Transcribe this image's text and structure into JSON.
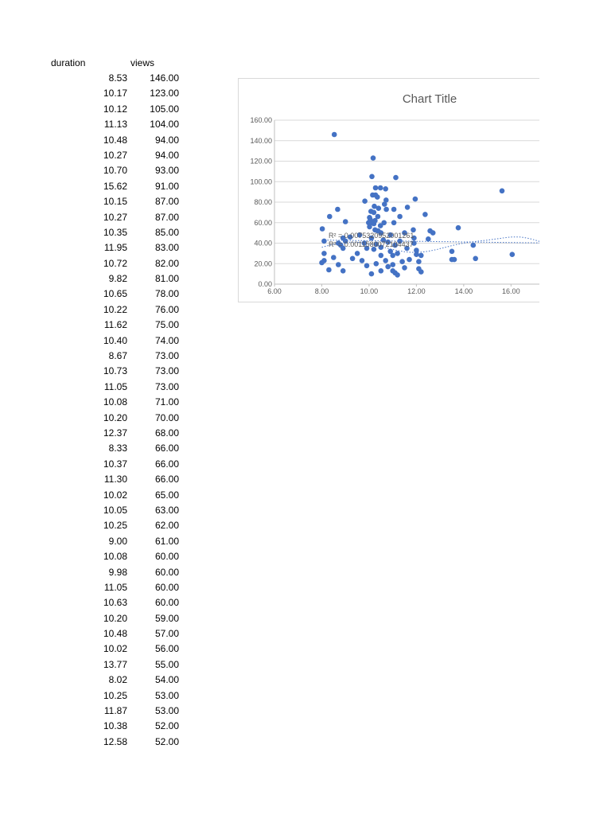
{
  "table": {
    "headers": [
      "duration",
      "views"
    ],
    "rows": [
      [
        "8.53",
        "146.00"
      ],
      [
        "10.17",
        "123.00"
      ],
      [
        "10.12",
        "105.00"
      ],
      [
        "11.13",
        "104.00"
      ],
      [
        "10.48",
        "94.00"
      ],
      [
        "10.27",
        "94.00"
      ],
      [
        "10.70",
        "93.00"
      ],
      [
        "15.62",
        "91.00"
      ],
      [
        "10.15",
        "87.00"
      ],
      [
        "10.27",
        "87.00"
      ],
      [
        "10.35",
        "85.00"
      ],
      [
        "11.95",
        "83.00"
      ],
      [
        "10.72",
        "82.00"
      ],
      [
        "9.82",
        "81.00"
      ],
      [
        "10.65",
        "78.00"
      ],
      [
        "10.22",
        "76.00"
      ],
      [
        "11.62",
        "75.00"
      ],
      [
        "10.40",
        "74.00"
      ],
      [
        "8.67",
        "73.00"
      ],
      [
        "10.73",
        "73.00"
      ],
      [
        "11.05",
        "73.00"
      ],
      [
        "10.08",
        "71.00"
      ],
      [
        "10.20",
        "70.00"
      ],
      [
        "12.37",
        "68.00"
      ],
      [
        "8.33",
        "66.00"
      ],
      [
        "10.37",
        "66.00"
      ],
      [
        "11.30",
        "66.00"
      ],
      [
        "10.02",
        "65.00"
      ],
      [
        "10.05",
        "63.00"
      ],
      [
        "10.25",
        "62.00"
      ],
      [
        "9.00",
        "61.00"
      ],
      [
        "10.08",
        "60.00"
      ],
      [
        "9.98",
        "60.00"
      ],
      [
        "11.05",
        "60.00"
      ],
      [
        "10.63",
        "60.00"
      ],
      [
        "10.20",
        "59.00"
      ],
      [
        "10.48",
        "57.00"
      ],
      [
        "10.02",
        "56.00"
      ],
      [
        "13.77",
        "55.00"
      ],
      [
        "8.02",
        "54.00"
      ],
      [
        "10.25",
        "53.00"
      ],
      [
        "11.87",
        "53.00"
      ],
      [
        "10.38",
        "52.00"
      ],
      [
        "12.58",
        "52.00"
      ]
    ]
  },
  "chart_data": {
    "type": "scatter",
    "title": "Chart Title",
    "xlabel": "",
    "ylabel": "",
    "xlim": [
      6,
      17.2
    ],
    "ylim": [
      0,
      160
    ],
    "x_ticks": [
      "6.00",
      "8.00",
      "10.00",
      "12.00",
      "14.00",
      "16.00"
    ],
    "y_ticks": [
      "0.00",
      "20.00",
      "40.00",
      "60.00",
      "80.00",
      "100.00",
      "120.00",
      "140.00",
      "160.00"
    ],
    "grid": true,
    "marker_color": "#4472c4",
    "trendline_color": "#4472c4",
    "annotations": [
      "R² = 0.0075320952001261",
      "R² = 0.0011580072104437"
    ],
    "points": [
      [
        8.53,
        146
      ],
      [
        10.17,
        123
      ],
      [
        10.12,
        105
      ],
      [
        11.13,
        104
      ],
      [
        10.48,
        94
      ],
      [
        10.27,
        94
      ],
      [
        10.7,
        93
      ],
      [
        15.62,
        91
      ],
      [
        10.15,
        87
      ],
      [
        10.27,
        87
      ],
      [
        10.35,
        85
      ],
      [
        11.95,
        83
      ],
      [
        10.72,
        82
      ],
      [
        9.82,
        81
      ],
      [
        10.65,
        78
      ],
      [
        10.22,
        76
      ],
      [
        11.62,
        75
      ],
      [
        10.4,
        74
      ],
      [
        8.67,
        73
      ],
      [
        10.73,
        73
      ],
      [
        11.05,
        73
      ],
      [
        10.08,
        71
      ],
      [
        10.2,
        70
      ],
      [
        12.37,
        68
      ],
      [
        8.33,
        66
      ],
      [
        10.37,
        66
      ],
      [
        11.3,
        66
      ],
      [
        10.02,
        65
      ],
      [
        10.05,
        63
      ],
      [
        10.25,
        62
      ],
      [
        9.0,
        61
      ],
      [
        10.08,
        60
      ],
      [
        9.98,
        60
      ],
      [
        11.05,
        60
      ],
      [
        10.63,
        60
      ],
      [
        10.2,
        59
      ],
      [
        10.48,
        57
      ],
      [
        10.02,
        56
      ],
      [
        13.77,
        55
      ],
      [
        8.02,
        54
      ],
      [
        10.25,
        53
      ],
      [
        11.87,
        53
      ],
      [
        10.38,
        52
      ],
      [
        12.58,
        52
      ],
      [
        12.7,
        50
      ],
      [
        11.5,
        50
      ],
      [
        10.5,
        50
      ],
      [
        9.6,
        48
      ],
      [
        10.9,
        48
      ],
      [
        9.2,
        46
      ],
      [
        11.9,
        45
      ],
      [
        8.9,
        45
      ],
      [
        10.1,
        45
      ],
      [
        12.5,
        44
      ],
      [
        10.6,
        43
      ],
      [
        9.0,
        42
      ],
      [
        8.1,
        42
      ],
      [
        11.3,
        42
      ],
      [
        10.8,
        41
      ],
      [
        9.8,
        40
      ],
      [
        11.9,
        40
      ],
      [
        8.7,
        40
      ],
      [
        10.3,
        39
      ],
      [
        8.8,
        38
      ],
      [
        11.1,
        38
      ],
      [
        14.4,
        38
      ],
      [
        10.5,
        36
      ],
      [
        9.9,
        35
      ],
      [
        8.9,
        35
      ],
      [
        11.6,
        35
      ],
      [
        10.2,
        34
      ],
      [
        12.0,
        33
      ],
      [
        13.5,
        32
      ],
      [
        10.9,
        32
      ],
      [
        9.5,
        30
      ],
      [
        11.2,
        30
      ],
      [
        8.1,
        30
      ],
      [
        16.05,
        29
      ],
      [
        12.0,
        29
      ],
      [
        10.5,
        28
      ],
      [
        11.0,
        28
      ],
      [
        12.2,
        28
      ],
      [
        8.5,
        26
      ],
      [
        9.3,
        25
      ],
      [
        14.5,
        25
      ],
      [
        13.6,
        24
      ],
      [
        13.5,
        24
      ],
      [
        11.7,
        24
      ],
      [
        10.7,
        23
      ],
      [
        9.7,
        23
      ],
      [
        8.1,
        23
      ],
      [
        11.4,
        22
      ],
      [
        12.1,
        22
      ],
      [
        8.0,
        21
      ],
      [
        10.3,
        20
      ],
      [
        11.0,
        19
      ],
      [
        8.7,
        19
      ],
      [
        9.9,
        18
      ],
      [
        10.8,
        17
      ],
      [
        11.5,
        16
      ],
      [
        12.1,
        15
      ],
      [
        8.3,
        14
      ],
      [
        10.5,
        13
      ],
      [
        8.9,
        13
      ],
      [
        11.0,
        13
      ],
      [
        12.2,
        12
      ],
      [
        11.1,
        11
      ],
      [
        10.1,
        10
      ],
      [
        11.2,
        9
      ]
    ]
  }
}
